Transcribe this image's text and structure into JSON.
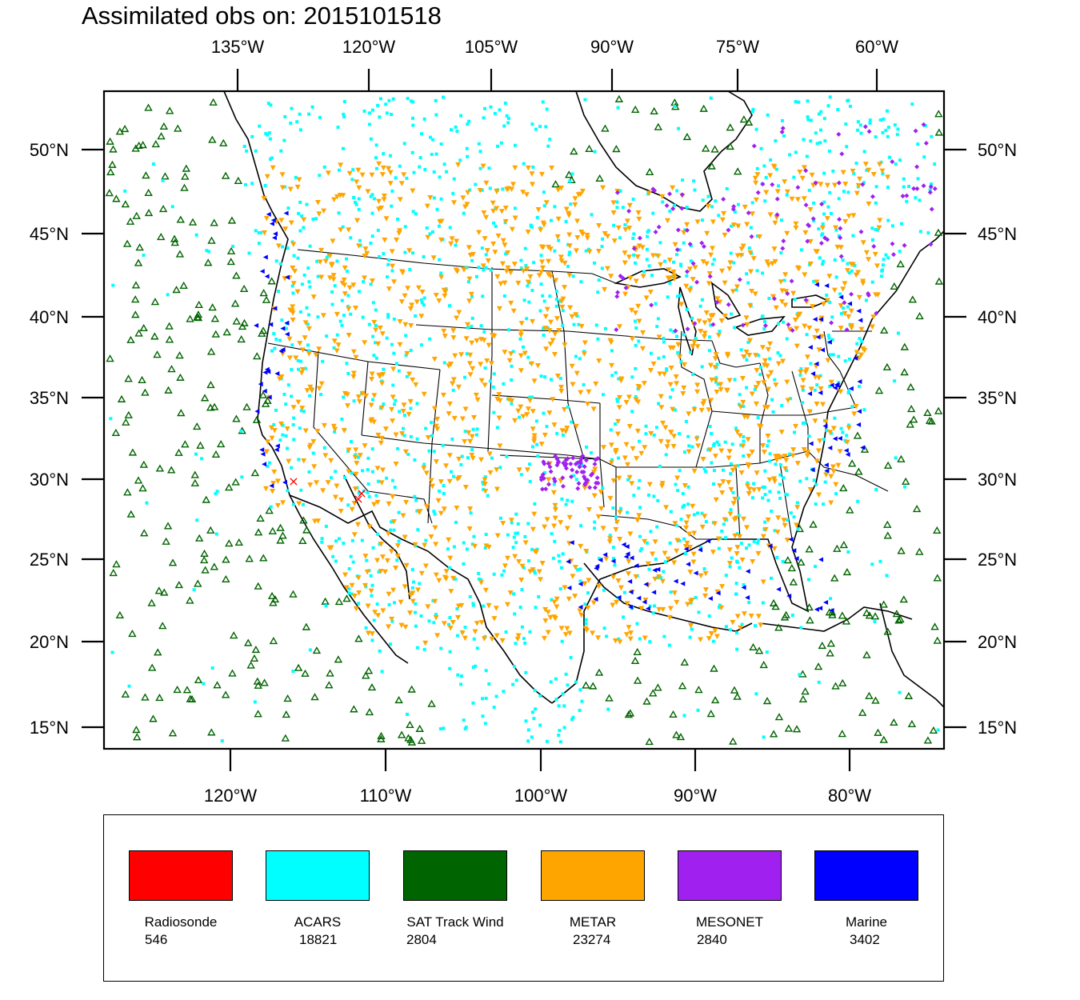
{
  "title": "Assimilated obs on: 2015101518",
  "axes": {
    "top_ticks": [
      "135°W",
      "120°W",
      "105°W",
      "90°W",
      "75°W",
      "60°W"
    ],
    "bottom_ticks": [
      "120°W",
      "110°W",
      "100°W",
      "90°W",
      "80°W"
    ],
    "left_ticks": [
      "50°N",
      "45°N",
      "40°N",
      "35°N",
      "30°N",
      "25°N",
      "20°N",
      "15°N"
    ],
    "right_ticks": [
      "50°N",
      "45°N",
      "40°N",
      "35°N",
      "30°N",
      "25°N",
      "20°N",
      "15°N"
    ]
  },
  "legend": [
    {
      "name": "Radiosonde",
      "count": "546",
      "color": "#ff0000",
      "marker": "x-mark"
    },
    {
      "name": "ACARS",
      "count": "18821",
      "color": "#00ffff",
      "marker": "square-dot"
    },
    {
      "name": "SAT Track Wind",
      "count": "2804",
      "color": "#006400",
      "marker": "triangle-up"
    },
    {
      "name": "METAR",
      "count": "23274",
      "color": "#ffa500",
      "marker": "triangle-down"
    },
    {
      "name": "MESONET",
      "count": "2840",
      "color": "#a020f0",
      "marker": "diamond"
    },
    {
      "name": "Marine",
      "count": "3402",
      "color": "#0000ff",
      "marker": "triangle-left"
    }
  ]
}
